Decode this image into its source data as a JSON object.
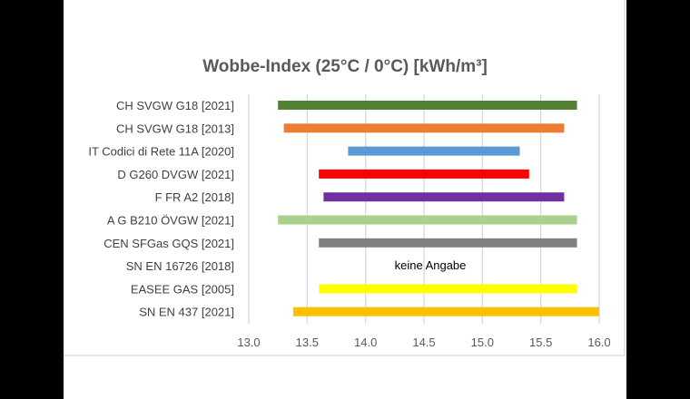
{
  "chart_data": {
    "type": "bar",
    "orientation": "horizontal-range",
    "title": "Wobbe-Index (25°C / 0°C) [kWh/m³]",
    "xlabel": "",
    "ylabel": "",
    "xlim": [
      13.0,
      16.0
    ],
    "x_ticks": [
      "13.0",
      "13.5",
      "14.0",
      "14.5",
      "15.0",
      "15.5",
      "16.0"
    ],
    "grid": "vertical",
    "legend": "none",
    "categories": [
      "CH SVGW G18 [2021]",
      "CH SVGW G18 [2013]",
      "IT Codici di Rete 11A [2020]",
      "D G260 DVGW  [2021]",
      "F  FR A2 [2018]",
      "A G B210 ÖVGW [2021]",
      "CEN SFGas GQS [2021]",
      "SN EN 16726 [2018]",
      "EASEE GAS [2005]",
      "SN EN 437  [2021]"
    ],
    "ranges": [
      {
        "min": 13.25,
        "max": 15.81,
        "color": "#548235"
      },
      {
        "min": 13.3,
        "max": 15.7,
        "color": "#ed7d31"
      },
      {
        "min": 13.85,
        "max": 15.32,
        "color": "#5b9bd5"
      },
      {
        "min": 13.6,
        "max": 15.4,
        "color": "#ff0000"
      },
      {
        "min": 13.64,
        "max": 15.7,
        "color": "#7030a0"
      },
      {
        "min": 13.25,
        "max": 15.81,
        "color": "#a9d18e"
      },
      {
        "min": 13.6,
        "max": 15.81,
        "color": "#808080"
      },
      null,
      {
        "min": 13.6,
        "max": 15.81,
        "color": "#ffff00"
      },
      {
        "min": 13.38,
        "max": 16.0,
        "color": "#ffc000"
      }
    ],
    "annotations": [
      {
        "category": "SN EN 16726 [2018]",
        "text": "keine Angabe"
      }
    ]
  }
}
